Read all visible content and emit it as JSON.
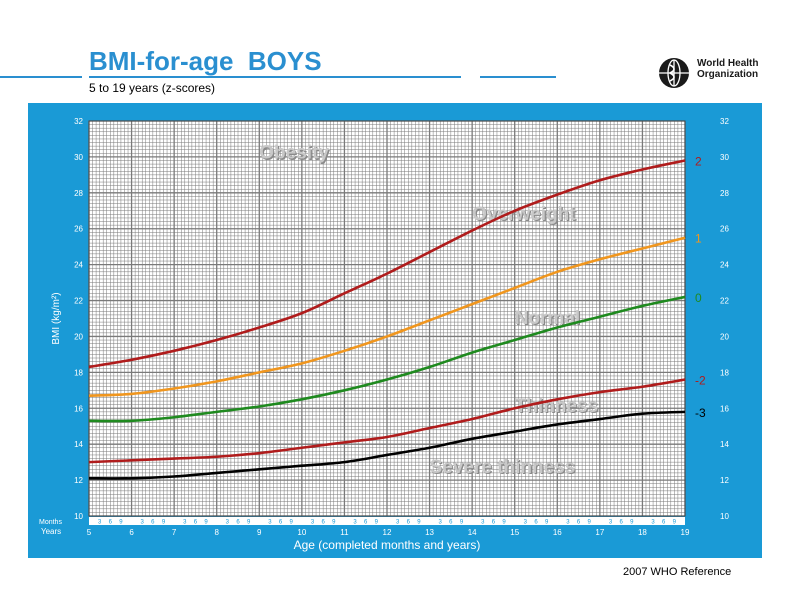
{
  "header": {
    "title": "BMI-for-age  BOYS",
    "subtitle": "5 to 19 years (z-scores)",
    "logo_text_line1": "World Health",
    "logo_text_line2": "Organization"
  },
  "footer": {
    "reference": "2007  WHO Reference"
  },
  "colors": {
    "panel": "#1a9ad6",
    "title": "#2a8fd0",
    "grid": "#7a7a7a",
    "z_plus2": "#b01c1c",
    "z_plus1": "#f0961e",
    "z_zero": "#1f8a1f",
    "z_minus2": "#b01c1c",
    "z_minus3": "#000000",
    "zone_labels": "#c8c8c8"
  },
  "chart_data": {
    "type": "line",
    "title": "BMI-for-age  BOYS",
    "subtitle": "5 to 19 years (z-scores)",
    "xlabel": "Age (completed months and years)",
    "ylabel": "BMI (kg/m²)",
    "xlim": [
      5,
      19
    ],
    "ylim": [
      10,
      32
    ],
    "grid": true,
    "x_axis_row_labels": {
      "months": "Months",
      "years": "Years"
    },
    "year_ticks": [
      "5",
      "6",
      "7",
      "8",
      "9",
      "10",
      "11",
      "12",
      "13",
      "14",
      "15",
      "16",
      "17",
      "18",
      "19"
    ],
    "month_ticks": [
      "3",
      "6",
      "9"
    ],
    "y_ticks": [
      "10",
      "12",
      "14",
      "16",
      "18",
      "20",
      "22",
      "24",
      "26",
      "28",
      "30",
      "32"
    ],
    "x": [
      5,
      6,
      7,
      8,
      9,
      10,
      11,
      12,
      13,
      14,
      15,
      16,
      17,
      18,
      19
    ],
    "series": [
      {
        "name": "2",
        "color": "#b01c1c",
        "values": [
          18.3,
          18.7,
          19.2,
          19.8,
          20.5,
          21.3,
          22.4,
          23.5,
          24.7,
          25.9,
          27.0,
          27.9,
          28.7,
          29.3,
          29.8
        ]
      },
      {
        "name": "1",
        "color": "#f0961e",
        "values": [
          16.7,
          16.8,
          17.1,
          17.5,
          18.0,
          18.5,
          19.2,
          20.0,
          20.9,
          21.8,
          22.7,
          23.6,
          24.3,
          24.9,
          25.5
        ]
      },
      {
        "name": "0",
        "color": "#1f8a1f",
        "values": [
          15.3,
          15.3,
          15.5,
          15.8,
          16.1,
          16.5,
          17.0,
          17.6,
          18.3,
          19.1,
          19.8,
          20.5,
          21.1,
          21.7,
          22.2
        ]
      },
      {
        "name": "-2",
        "color": "#b01c1c",
        "values": [
          13.0,
          13.1,
          13.2,
          13.3,
          13.5,
          13.8,
          14.1,
          14.4,
          14.9,
          15.4,
          16.0,
          16.5,
          16.9,
          17.2,
          17.6
        ]
      },
      {
        "name": "-3",
        "color": "#000000",
        "values": [
          12.1,
          12.1,
          12.2,
          12.4,
          12.6,
          12.8,
          13.0,
          13.4,
          13.8,
          14.3,
          14.7,
          15.1,
          15.4,
          15.7,
          15.8
        ]
      }
    ],
    "zone_labels": [
      {
        "text": "Obesity",
        "x": 9.0,
        "y": 29.9
      },
      {
        "text": "Overweight",
        "x": 14.0,
        "y": 26.5
      },
      {
        "text": "Normal",
        "x": 15.0,
        "y": 20.7
      },
      {
        "text": "Thinness",
        "x": 15.0,
        "y": 15.8
      },
      {
        "text": "Severe thinness",
        "x": 13.0,
        "y": 12.4
      }
    ]
  }
}
